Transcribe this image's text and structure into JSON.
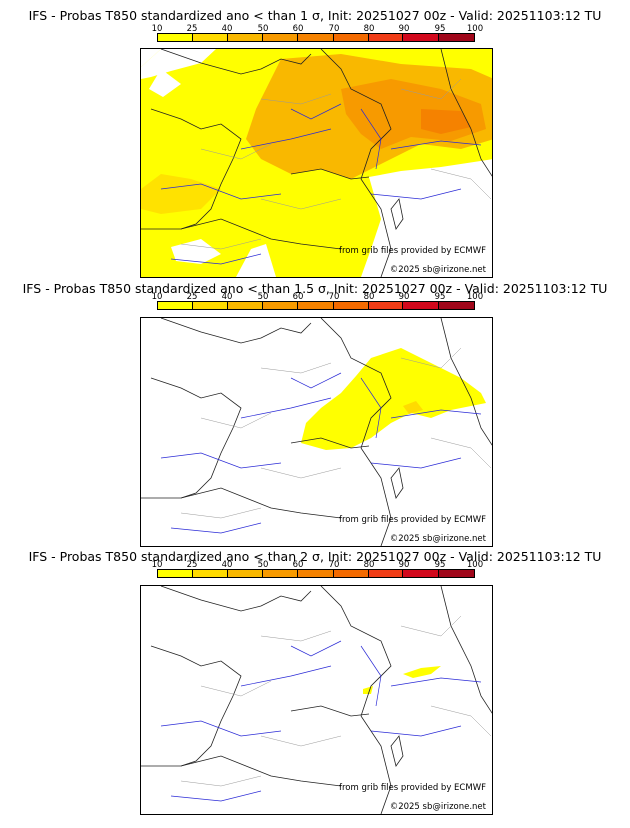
{
  "colors": [
    "#ffff00",
    "#ffdb00",
    "#f9b800",
    "#f79a00",
    "#f58200",
    "#f36a00",
    "#f03c16",
    "#d2081c",
    "#a0061a",
    "#6e0412"
  ],
  "legend_labels": [
    "10",
    "25",
    "40",
    "50",
    "60",
    "70",
    "80",
    "90",
    "95",
    "100"
  ],
  "credit_source": "from grib files provided by ECMWF",
  "credit_copyright": "©2025 sb@irizone.net",
  "panels": [
    {
      "title": "IFS - Probas T850  standardized ano < than 1 σ, Init: 20251027 00z - Valid: 20251103:12 TU"
    },
    {
      "title": "IFS - Probas T850  standardized ano < than 1.5 σ, Init: 20251027 00z - Valid: 20251103:12 TU"
    },
    {
      "title": "IFS - Probas T850  standardized ano < than 2 σ, Init: 20251027 00z - Valid: 20251103:12 TU"
    }
  ]
}
